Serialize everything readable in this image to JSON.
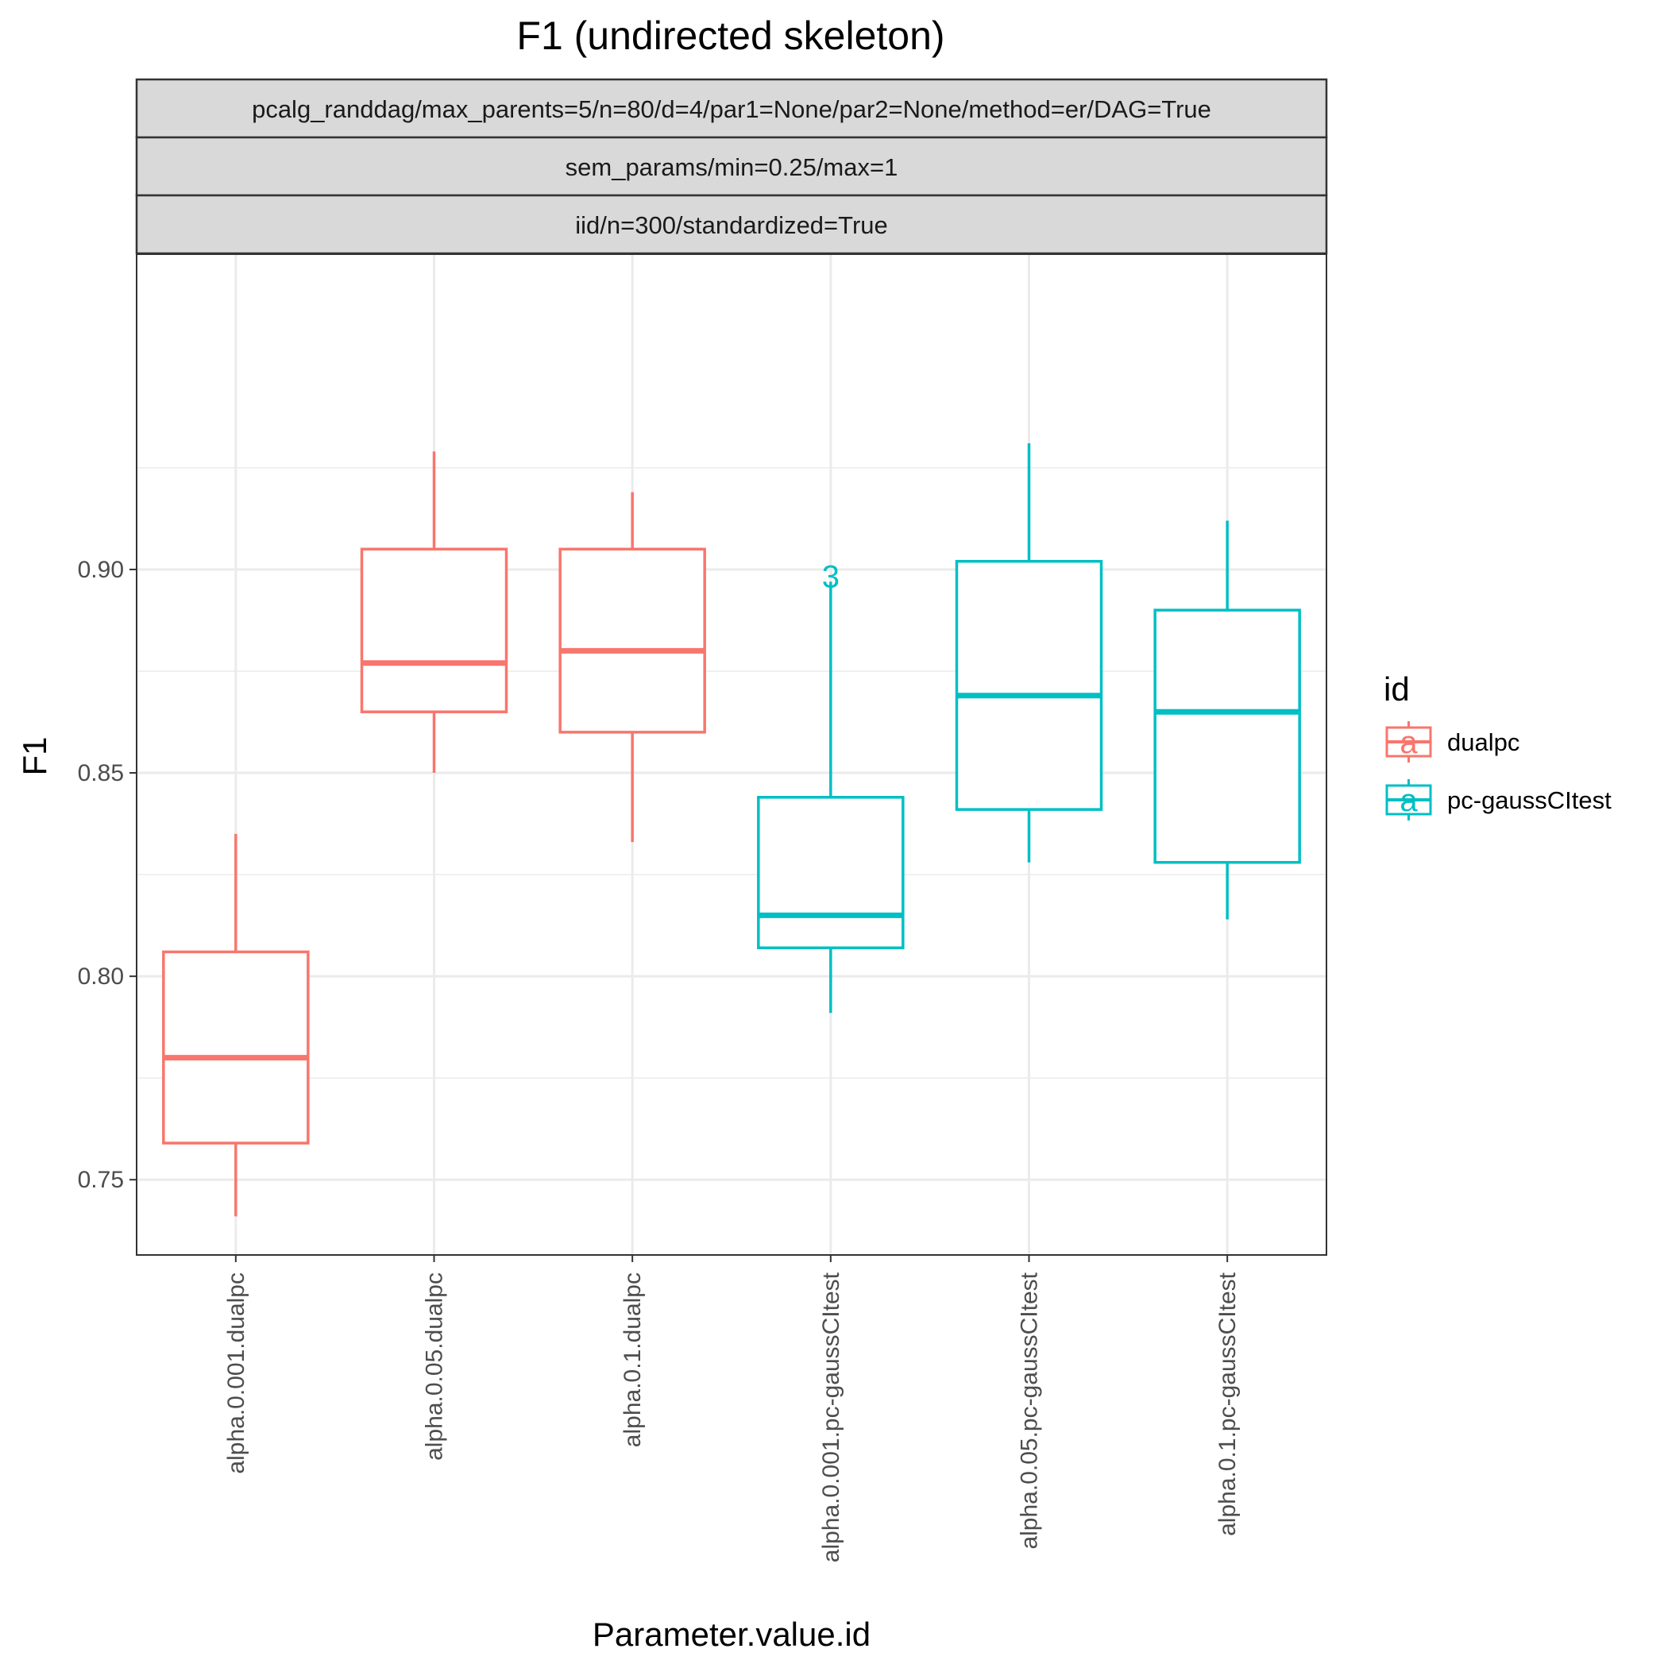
{
  "chart_data": {
    "type": "boxplot",
    "title": "F1 (undirected skeleton)",
    "facet_strips": [
      "pcalg_randdag/max_parents=5/n=80/d=4/par1=None/par2=None/method=er/DAG=True",
      "sem_params/min=0.25/max=1",
      "iid/n=300/standardized=True"
    ],
    "xlabel": "Parameter.value.id",
    "ylabel": "F1",
    "ylim": [
      0.7315,
      0.9775
    ],
    "yticks": [
      0.75,
      0.8,
      0.85,
      0.9
    ],
    "ytick_labels": [
      "0.75",
      "0.80",
      "0.85",
      "0.90"
    ],
    "categories": [
      "alpha.0.001.dualpc",
      "alpha.0.05.dualpc",
      "alpha.0.1.dualpc",
      "alpha.0.001.pc-gaussCItest",
      "alpha.0.05.pc-gaussCItest",
      "alpha.0.1.pc-gaussCItest"
    ],
    "boxes": [
      {
        "category": "alpha.0.001.dualpc",
        "group": "dualpc",
        "whisker_low": 0.741,
        "q1": 0.759,
        "median": 0.78,
        "q3": 0.806,
        "whisker_high": 0.835
      },
      {
        "category": "alpha.0.05.dualpc",
        "group": "dualpc",
        "whisker_low": 0.85,
        "q1": 0.865,
        "median": 0.877,
        "q3": 0.905,
        "whisker_high": 0.929
      },
      {
        "category": "alpha.0.1.dualpc",
        "group": "dualpc",
        "whisker_low": 0.833,
        "q1": 0.86,
        "median": 0.88,
        "q3": 0.905,
        "whisker_high": 0.919
      },
      {
        "category": "alpha.0.001.pc-gaussCItest",
        "group": "pc-gaussCItest",
        "whisker_low": 0.791,
        "q1": 0.807,
        "median": 0.815,
        "q3": 0.844,
        "whisker_high": 0.897,
        "label": "3",
        "label_value": 0.897
      },
      {
        "category": "alpha.0.05.pc-gaussCItest",
        "group": "pc-gaussCItest",
        "whisker_low": 0.828,
        "q1": 0.841,
        "median": 0.869,
        "q3": 0.902,
        "whisker_high": 0.931
      },
      {
        "category": "alpha.0.1.pc-gaussCItest",
        "group": "pc-gaussCItest",
        "whisker_low": 0.814,
        "q1": 0.828,
        "median": 0.865,
        "q3": 0.89,
        "whisker_high": 0.912
      }
    ],
    "legend": {
      "title": "id",
      "entries": [
        {
          "name": "dualpc",
          "color": "#F8766D",
          "key_glyph": "a"
        },
        {
          "name": "pc-gaussCItest",
          "color": "#00BFC4",
          "key_glyph": "a"
        }
      ]
    },
    "colors": {
      "dualpc": "#F8766D",
      "pc-gaussCItest": "#00BFC4"
    }
  }
}
